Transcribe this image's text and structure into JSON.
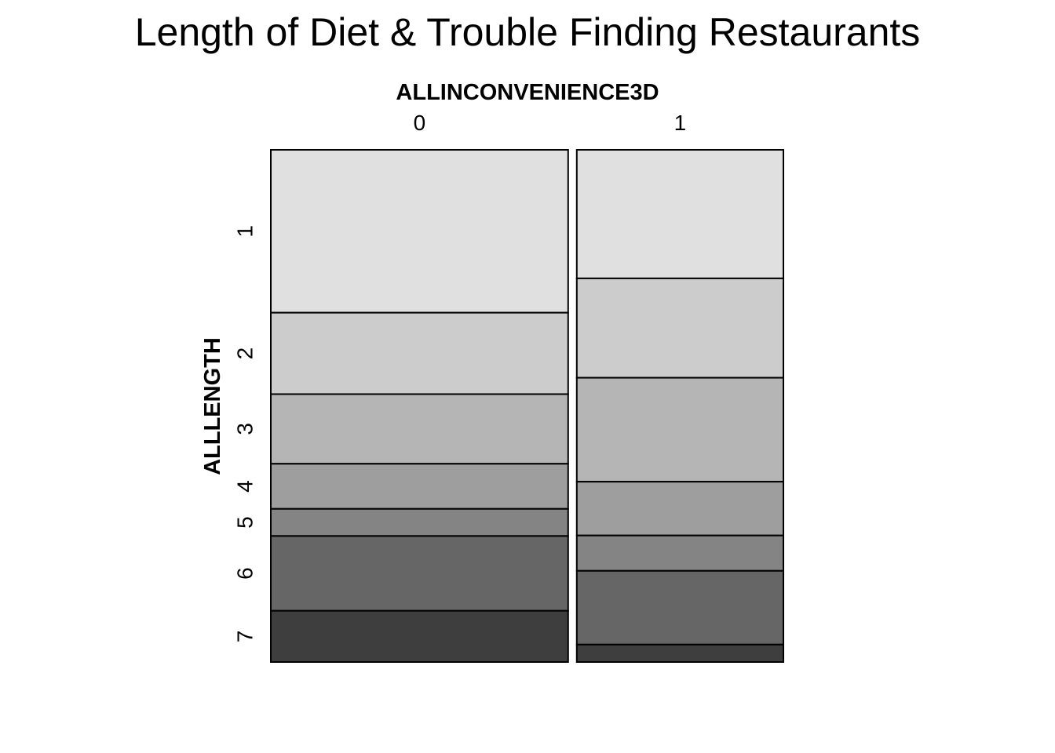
{
  "chart_data": {
    "type": "mosaic",
    "title": "Length of Diet & Trouble Finding Restaurants",
    "xlabel": "ALLINCONVENIENCE3D",
    "ylabel": "ALLLENGTH",
    "columns": [
      "0",
      "1"
    ],
    "column_proportions": [
      0.59,
      0.41
    ],
    "rows": [
      "1",
      "2",
      "3",
      "4",
      "5",
      "6",
      "7"
    ],
    "row_colors": [
      "#e0e0e0",
      "#cccccc",
      "#b5b5b5",
      "#9e9e9e",
      "#848484",
      "#666666",
      "#3e3e3e"
    ],
    "conditional_proportions": {
      "0": [
        0.318,
        0.159,
        0.136,
        0.088,
        0.053,
        0.146,
        0.1
      ],
      "1": [
        0.251,
        0.194,
        0.203,
        0.105,
        0.069,
        0.144,
        0.034
      ]
    }
  }
}
